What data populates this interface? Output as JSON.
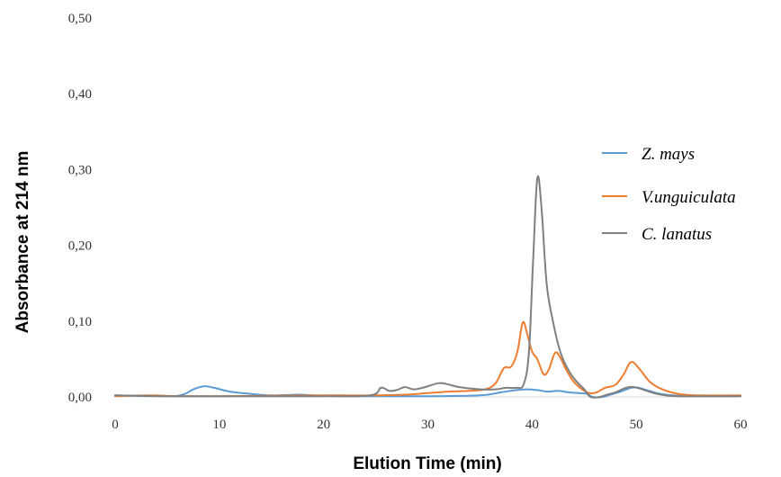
{
  "chart_data": {
    "type": "line",
    "title": "",
    "xlabel": "Elution Time (min)",
    "ylabel": "Absorbance at 214 nm",
    "xlim": [
      0,
      60
    ],
    "ylim": [
      0,
      0.5
    ],
    "x_ticks": [
      0,
      10,
      20,
      30,
      40,
      50,
      60
    ],
    "x_tick_labels": [
      "0",
      "10",
      "20",
      "30",
      "40",
      "50",
      "60"
    ],
    "y_ticks": [
      0,
      0.1,
      0.2,
      0.3,
      0.4,
      0.5
    ],
    "y_tick_labels": [
      "0,00",
      "0,10",
      "0,20",
      "0,30",
      "0,40",
      "0,50"
    ],
    "grid": false,
    "legend_position": "right",
    "series": [
      {
        "name": "Z. mays",
        "color": "#5b9bd5",
        "points": [
          [
            0,
            0.002
          ],
          [
            5,
            0.001
          ],
          [
            6.5,
            0.003
          ],
          [
            7.5,
            0.01
          ],
          [
            8.5,
            0.014
          ],
          [
            9.5,
            0.012
          ],
          [
            11,
            0.007
          ],
          [
            13,
            0.004
          ],
          [
            15,
            0.002
          ],
          [
            17.5,
            0.003
          ],
          [
            19,
            0.002
          ],
          [
            21,
            0.001
          ],
          [
            25,
            0.001
          ],
          [
            30,
            0.001
          ],
          [
            35,
            0.002
          ],
          [
            37,
            0.006
          ],
          [
            38.5,
            0.009
          ],
          [
            39.5,
            0.01
          ],
          [
            40.5,
            0.009
          ],
          [
            41.5,
            0.007
          ],
          [
            42.5,
            0.008
          ],
          [
            43.5,
            0.006
          ],
          [
            44.5,
            0.005
          ],
          [
            45.3,
            0.004
          ],
          [
            45.8,
            0.0
          ],
          [
            46.8,
            0.0
          ],
          [
            47.5,
            0.003
          ],
          [
            48.5,
            0.007
          ],
          [
            49.5,
            0.012
          ],
          [
            50.2,
            0.012
          ],
          [
            51,
            0.009
          ],
          [
            52,
            0.005
          ],
          [
            53.5,
            0.002
          ],
          [
            55,
            0.001
          ],
          [
            60,
            0.001
          ]
        ]
      },
      {
        "name": "V.unguiculata",
        "color": "#ed7d31",
        "points": [
          [
            0,
            0.001
          ],
          [
            3.5,
            0.002
          ],
          [
            6,
            0.001
          ],
          [
            10,
            0.001
          ],
          [
            20,
            0.002
          ],
          [
            25,
            0.002
          ],
          [
            28,
            0.003
          ],
          [
            30,
            0.005
          ],
          [
            32,
            0.007
          ],
          [
            34,
            0.008
          ],
          [
            35.5,
            0.01
          ],
          [
            36.5,
            0.018
          ],
          [
            37.3,
            0.038
          ],
          [
            38,
            0.04
          ],
          [
            38.6,
            0.06
          ],
          [
            39.1,
            0.098
          ],
          [
            39.5,
            0.085
          ],
          [
            40,
            0.06
          ],
          [
            40.5,
            0.05
          ],
          [
            41.1,
            0.03
          ],
          [
            41.6,
            0.036
          ],
          [
            42.2,
            0.058
          ],
          [
            42.7,
            0.052
          ],
          [
            43.3,
            0.035
          ],
          [
            44,
            0.02
          ],
          [
            44.8,
            0.01
          ],
          [
            45.5,
            0.005
          ],
          [
            46.2,
            0.006
          ],
          [
            47,
            0.012
          ],
          [
            48,
            0.016
          ],
          [
            48.8,
            0.03
          ],
          [
            49.5,
            0.046
          ],
          [
            50.3,
            0.037
          ],
          [
            51.3,
            0.02
          ],
          [
            52.5,
            0.01
          ],
          [
            54,
            0.004
          ],
          [
            56,
            0.002
          ],
          [
            60,
            0.002
          ]
        ]
      },
      {
        "name": "C. lanatus",
        "color": "#7f7f7f",
        "points": [
          [
            0,
            0.002
          ],
          [
            5,
            0.001
          ],
          [
            10,
            0.001
          ],
          [
            20,
            0.001
          ],
          [
            24.5,
            0.002
          ],
          [
            25.5,
            0.012
          ],
          [
            26.3,
            0.008
          ],
          [
            27,
            0.009
          ],
          [
            27.8,
            0.013
          ],
          [
            28.6,
            0.01
          ],
          [
            29.5,
            0.012
          ],
          [
            31,
            0.018
          ],
          [
            31.8,
            0.017
          ],
          [
            33,
            0.013
          ],
          [
            35,
            0.01
          ],
          [
            36.5,
            0.01
          ],
          [
            37.5,
            0.012
          ],
          [
            38.5,
            0.012
          ],
          [
            39.2,
            0.017
          ],
          [
            39.7,
            0.06
          ],
          [
            40.1,
            0.18
          ],
          [
            40.5,
            0.288
          ],
          [
            40.9,
            0.25
          ],
          [
            41.4,
            0.15
          ],
          [
            42,
            0.1
          ],
          [
            42.7,
            0.06
          ],
          [
            43.5,
            0.035
          ],
          [
            44.3,
            0.02
          ],
          [
            45,
            0.01
          ],
          [
            45.6,
            0.0
          ],
          [
            46.5,
            0.0
          ],
          [
            47.2,
            0.003
          ],
          [
            48,
            0.006
          ],
          [
            49,
            0.012
          ],
          [
            49.8,
            0.013
          ],
          [
            50.8,
            0.009
          ],
          [
            52,
            0.004
          ],
          [
            54,
            0.001
          ],
          [
            60,
            0.001
          ]
        ]
      }
    ]
  }
}
